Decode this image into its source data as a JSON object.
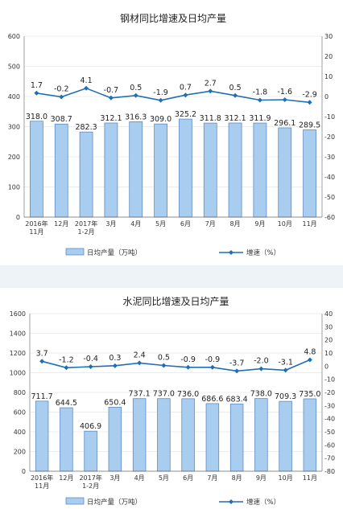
{
  "colors": {
    "bar_fill": "#a9cdef",
    "bar_stroke": "#4f81bd",
    "line": "#1f6fb5",
    "grid": "#d9d9d9",
    "gap": "#eef3f8"
  },
  "chart_data": [
    {
      "type": "bar",
      "title": "钢材同比增速及日均产量",
      "categories": [
        [
          "2016年",
          "11月"
        ],
        [
          "12月"
        ],
        [
          "2017年",
          "1-2月"
        ],
        [
          "3月"
        ],
        [
          "4月"
        ],
        [
          "5月"
        ],
        [
          "6月"
        ],
        [
          "7月"
        ],
        [
          "8月"
        ],
        [
          "9月"
        ],
        [
          "10月"
        ],
        [
          "11月"
        ]
      ],
      "series": [
        {
          "name": "日均产量（万吨）",
          "type": "bar",
          "axis": "left",
          "values": [
            318.0,
            308.7,
            282.3,
            312.1,
            316.3,
            309.0,
            325.2,
            311.8,
            312.1,
            311.9,
            296.1,
            289.5
          ],
          "labels": [
            "318.0",
            "308.7",
            "282.3",
            "312.1",
            "316.3",
            "309.0",
            "325.2",
            "311.8",
            "312.1",
            "311.9",
            "296.1",
            "289.5"
          ]
        },
        {
          "name": "增速（%）",
          "type": "line",
          "axis": "right",
          "values": [
            1.7,
            -0.2,
            4.1,
            -0.7,
            0.5,
            -1.9,
            0.7,
            2.7,
            0.5,
            -1.8,
            -1.6,
            -2.9
          ],
          "labels": [
            "1.7",
            "-0.2",
            "4.1",
            "-0.7",
            "0.5",
            "-1.9",
            "0.7",
            "2.7",
            "0.5",
            "-1.8",
            "-1.6",
            "-2.9"
          ]
        }
      ],
      "ylim_left": [
        0,
        600
      ],
      "yticks_left": [
        "0",
        "100",
        "200",
        "300",
        "400",
        "500",
        "600"
      ],
      "ylim_right": [
        -60,
        30
      ],
      "yticks_right": [
        "-60",
        "-50",
        "-40",
        "-30",
        "-20",
        "-10",
        "0",
        "10",
        "20",
        "30"
      ],
      "grid": true,
      "legend": "bottom"
    },
    {
      "type": "bar",
      "title": "水泥同比增速及日均产量",
      "categories": [
        [
          "2016年",
          "11月"
        ],
        [
          "12月"
        ],
        [
          "2017年",
          "1-2月"
        ],
        [
          "3月"
        ],
        [
          "4月"
        ],
        [
          "5月"
        ],
        [
          "6月"
        ],
        [
          "7月"
        ],
        [
          "8月"
        ],
        [
          "9月"
        ],
        [
          "10月"
        ],
        [
          "11月"
        ]
      ],
      "series": [
        {
          "name": "日均产量（万吨）",
          "type": "bar",
          "axis": "left",
          "values": [
            711.7,
            644.5,
            406.9,
            650.4,
            737.1,
            737.0,
            736.0,
            686.6,
            683.4,
            738.0,
            709.3,
            735.0
          ],
          "labels": [
            "711.7",
            "644.5",
            "406.9",
            "650.4",
            "737.1",
            "737.0",
            "736.0",
            "686.6",
            "683.4",
            "738.0",
            "709.3",
            "735.0"
          ]
        },
        {
          "name": "增速（%）",
          "type": "line",
          "axis": "right",
          "values": [
            3.7,
            -1.2,
            -0.4,
            0.3,
            2.4,
            0.5,
            -0.9,
            -0.9,
            -3.7,
            -2.0,
            -3.1,
            4.8
          ],
          "labels": [
            "3.7",
            "-1.2",
            "-0.4",
            "0.3",
            "2.4",
            "0.5",
            "-0.9",
            "-0.9",
            "-3.7",
            "-2.0",
            "-3.1",
            "4.8"
          ]
        }
      ],
      "ylim_left": [
        0,
        1600
      ],
      "yticks_left": [
        "0",
        "200",
        "400",
        "600",
        "800",
        "1000",
        "1200",
        "1400",
        "1600"
      ],
      "ylim_right": [
        -80,
        40
      ],
      "yticks_right": [
        "-80",
        "-70",
        "-60",
        "-50",
        "-40",
        "-30",
        "-20",
        "-10",
        "0",
        "10",
        "20",
        "30",
        "40"
      ],
      "grid": true,
      "legend": "bottom"
    }
  ]
}
